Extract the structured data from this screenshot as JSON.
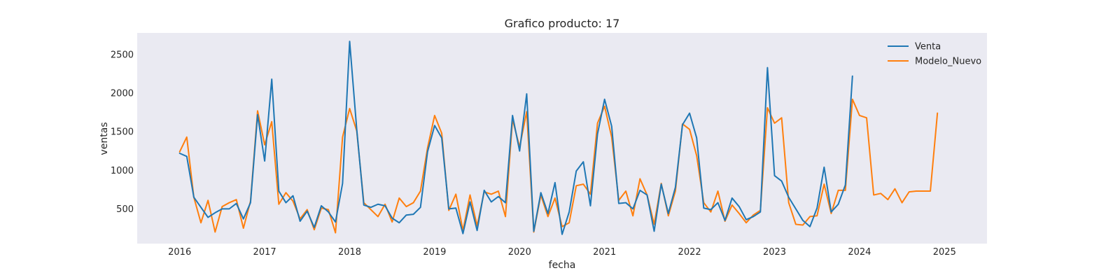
{
  "chart_data": {
    "type": "line",
    "title": "Grafico producto: 17",
    "xlabel": "fecha",
    "ylabel": "ventas",
    "x_start": "2016-01",
    "x_ticks": [
      "2016",
      "2017",
      "2018",
      "2019",
      "2020",
      "2021",
      "2022",
      "2023",
      "2024",
      "2025"
    ],
    "y_ticks": [
      500,
      1000,
      1500,
      2000,
      2500
    ],
    "xlim": [
      "2015-07",
      "2025-07"
    ],
    "ylim": [
      50,
      2780
    ],
    "grid": false,
    "legend_position": "top-right",
    "series": [
      {
        "name": "Venta",
        "color": "#1f77b4",
        "values": [
          1220,
          1180,
          650,
          520,
          390,
          450,
          500,
          500,
          570,
          370,
          580,
          1720,
          1120,
          2180,
          730,
          580,
          670,
          340,
          470,
          260,
          540,
          460,
          330,
          830,
          2670,
          1530,
          550,
          520,
          560,
          540,
          380,
          320,
          420,
          430,
          520,
          1240,
          1580,
          1420,
          500,
          510,
          180,
          590,
          220,
          740,
          590,
          660,
          580,
          1710,
          1250,
          1990,
          210,
          710,
          440,
          840,
          170,
          460,
          990,
          1110,
          540,
          1470,
          1920,
          1570,
          570,
          580,
          500,
          740,
          680,
          210,
          820,
          440,
          780,
          1590,
          1740,
          1420,
          510,
          490,
          580,
          350,
          640,
          530,
          360,
          400,
          460,
          2330,
          930,
          860,
          650,
          500,
          350,
          270,
          510,
          1040,
          460,
          560,
          810,
          2220
        ]
      },
      {
        "name": "Modelo_Nuevo",
        "color": "#ff7f0e",
        "values": [
          1240,
          1430,
          650,
          320,
          610,
          200,
          530,
          580,
          620,
          250,
          600,
          1770,
          1330,
          1630,
          560,
          710,
          600,
          370,
          490,
          230,
          510,
          490,
          190,
          1430,
          1800,
          1510,
          580,
          490,
          400,
          560,
          330,
          640,
          530,
          580,
          730,
          1290,
          1710,
          1480,
          480,
          690,
          220,
          680,
          280,
          720,
          690,
          730,
          400,
          1660,
          1300,
          1760,
          200,
          680,
          400,
          640,
          270,
          320,
          800,
          820,
          690,
          1610,
          1830,
          1430,
          610,
          730,
          410,
          890,
          680,
          300,
          830,
          410,
          730,
          1600,
          1530,
          1190,
          580,
          460,
          730,
          340,
          550,
          440,
          320,
          420,
          480,
          1810,
          1610,
          1680,
          580,
          300,
          290,
          400,
          410,
          820,
          440,
          740,
          740,
          1920,
          1710,
          1680,
          680,
          700,
          620,
          760,
          580,
          720,
          730,
          730,
          730,
          1740
        ]
      }
    ]
  }
}
